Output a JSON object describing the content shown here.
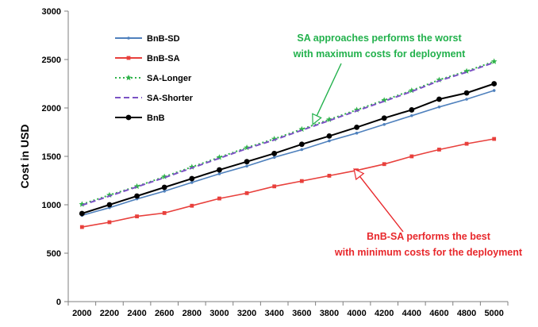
{
  "chart_data": {
    "type": "line",
    "title": "",
    "xlabel": "",
    "ylabel": "Cost in USD",
    "ylim": [
      0,
      3000
    ],
    "yticks": [
      "0",
      "500",
      "1000",
      "1500",
      "2000",
      "2500",
      "3000"
    ],
    "x": [
      2000,
      2200,
      2400,
      2600,
      2800,
      3000,
      3200,
      3400,
      3600,
      3800,
      4000,
      4200,
      4400,
      4600,
      4800,
      5000
    ],
    "grid": false,
    "legend_position": "top-left",
    "series": [
      {
        "name": "BnB-SD",
        "color": "#4f81bd",
        "style": "solid",
        "marker": "dot",
        "values": [
          890,
          970,
          1060,
          1140,
          1230,
          1320,
          1400,
          1490,
          1570,
          1660,
          1740,
          1830,
          1920,
          2010,
          2090,
          2180
        ]
      },
      {
        "name": "BnB-SA",
        "color": "#e8403c",
        "style": "solid",
        "marker": "square",
        "values": [
          770,
          820,
          880,
          915,
          990,
          1065,
          1120,
          1190,
          1245,
          1300,
          1355,
          1420,
          1500,
          1570,
          1630,
          1680
        ]
      },
      {
        "name": "SA-Longer",
        "color": "#2fb34a",
        "style": "dotted",
        "marker": "star",
        "values": [
          1005,
          1100,
          1190,
          1290,
          1390,
          1490,
          1590,
          1680,
          1780,
          1880,
          1980,
          2080,
          2180,
          2290,
          2380,
          2480
        ]
      },
      {
        "name": "SA-Shorter",
        "color": "#7b52c4",
        "style": "dashed",
        "marker": "none",
        "values": [
          995,
          1090,
          1185,
          1280,
          1380,
          1480,
          1580,
          1670,
          1770,
          1870,
          1970,
          2070,
          2170,
          2280,
          2370,
          2470
        ]
      },
      {
        "name": "BnB",
        "color": "#000000",
        "style": "solid",
        "marker": "circle",
        "values": [
          910,
          1000,
          1090,
          1180,
          1270,
          1360,
          1445,
          1530,
          1625,
          1710,
          1800,
          1895,
          1980,
          2090,
          2155,
          2250
        ]
      }
    ],
    "annotations": [
      {
        "id": "sa",
        "lines": [
          "SA approaches performs the worst",
          "with maximum costs for deployment"
        ],
        "color": "#22b14c",
        "arrow_to": {
          "x": 3680,
          "y": 1830
        }
      },
      {
        "id": "bnbsa",
        "lines": [
          "BnB-SA performs the best",
          "with minimum costs for the deployment"
        ],
        "color": "#e8282c",
        "arrow_to": {
          "x": 3980,
          "y": 1370
        }
      }
    ]
  }
}
